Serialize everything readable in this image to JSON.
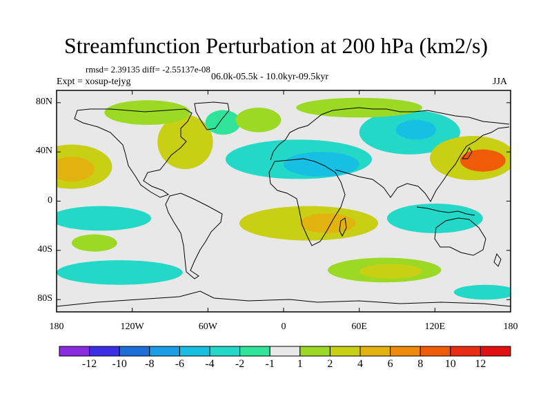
{
  "title": "Streamfunction Perturbation at 200 hPa (km2/s)",
  "stats": "rmsd= 2.39135  diff= -2.55137e-08",
  "experiment": "Expt = xosup-tejyg",
  "period": "06.0k-05.5k - 10.0kyr-09.5kyr",
  "season": "JJA",
  "map": {
    "type": "filled-contour-map",
    "projection": "cylindrical-equidistant",
    "lon_range": [
      -180,
      180
    ],
    "lat_range": [
      -90,
      90
    ],
    "lat_ticks": [
      {
        "value": 80,
        "label": "80N"
      },
      {
        "value": 40,
        "label": "40N"
      },
      {
        "value": 0,
        "label": "0"
      },
      {
        "value": -40,
        "label": "40S"
      },
      {
        "value": -80,
        "label": "80S"
      }
    ],
    "lon_ticks": [
      {
        "value": -180,
        "label": "180"
      },
      {
        "value": -120,
        "label": "120W"
      },
      {
        "value": -60,
        "label": "60W"
      },
      {
        "value": 0,
        "label": "0"
      },
      {
        "value": 60,
        "label": "60E"
      },
      {
        "value": 120,
        "label": "120E"
      },
      {
        "value": 180,
        "label": "180"
      }
    ],
    "background_color": "#e8e8e8",
    "anomaly_regions": [
      {
        "name": "east-pacific-north-high",
        "lon": -168,
        "lat": 28,
        "rlon": 32,
        "rlat": 18,
        "level": "4to6"
      },
      {
        "name": "east-pacific-north-high-core",
        "lon": -168,
        "lat": 26,
        "rlon": 18,
        "rlat": 10,
        "level": "6to8"
      },
      {
        "name": "north-america-high",
        "lon": -78,
        "lat": 48,
        "rlon": 22,
        "rlat": 22,
        "level": "4to6"
      },
      {
        "name": "arctic-high-west",
        "lon": -108,
        "lat": 72,
        "rlon": 34,
        "rlat": 10,
        "level": "2to4"
      },
      {
        "name": "atlantic-low",
        "lon": -48,
        "lat": 64,
        "rlon": 14,
        "rlat": 10,
        "level": "-1to-2"
      },
      {
        "name": "north-atlantic-high",
        "lon": -20,
        "lat": 66,
        "rlon": 18,
        "rlat": 10,
        "level": "2to4"
      },
      {
        "name": "eurasia-low-band",
        "lon": 12,
        "lat": 34,
        "rlon": 58,
        "rlat": 16,
        "level": "-2to-4"
      },
      {
        "name": "eurasia-low-core",
        "lon": 30,
        "lat": 30,
        "rlon": 30,
        "rlat": 10,
        "level": "-4to-6"
      },
      {
        "name": "siberia-low",
        "lon": 100,
        "lat": 56,
        "rlon": 40,
        "rlat": 18,
        "level": "-2to-4"
      },
      {
        "name": "siberia-low-core",
        "lon": 105,
        "lat": 58,
        "rlon": 16,
        "rlat": 8,
        "level": "-4to-6"
      },
      {
        "name": "arctic-high-east",
        "lon": 60,
        "lat": 76,
        "rlon": 50,
        "rlat": 8,
        "level": "2to4"
      },
      {
        "name": "west-pacific-high",
        "lon": 150,
        "lat": 35,
        "rlon": 34,
        "rlat": 18,
        "level": "4to6"
      },
      {
        "name": "west-pacific-high-core",
        "lon": 158,
        "lat": 33,
        "rlon": 18,
        "rlat": 9,
        "level": "8to10"
      },
      {
        "name": "east-pacific-south-low",
        "lon": -145,
        "lat": -14,
        "rlon": 40,
        "rlat": 10,
        "level": "-2to-4"
      },
      {
        "name": "south-atlantic-high",
        "lon": 20,
        "lat": -18,
        "rlon": 55,
        "rlat": 14,
        "level": "4to6"
      },
      {
        "name": "south-atlantic-high-core",
        "lon": 35,
        "lat": -18,
        "rlon": 22,
        "rlat": 8,
        "level": "6to8"
      },
      {
        "name": "indian-ocean-low",
        "lon": 120,
        "lat": -14,
        "rlon": 38,
        "rlat": 12,
        "level": "-2to-4"
      },
      {
        "name": "south-pacific-high",
        "lon": -150,
        "lat": -34,
        "rlon": 18,
        "rlat": 7,
        "level": "2to4"
      },
      {
        "name": "southern-ocean-low-west",
        "lon": -130,
        "lat": -58,
        "rlon": 50,
        "rlat": 10,
        "level": "-2to-4"
      },
      {
        "name": "southern-ocean-high",
        "lon": 80,
        "lat": -56,
        "rlon": 45,
        "rlat": 10,
        "level": "2to4"
      },
      {
        "name": "southern-ocean-high-core",
        "lon": 85,
        "lat": -57,
        "rlon": 25,
        "rlat": 6,
        "level": "4to6"
      },
      {
        "name": "antarctic-low",
        "lon": 160,
        "lat": -74,
        "rlon": 25,
        "rlat": 6,
        "level": "-2to-4"
      }
    ]
  },
  "colorbar": {
    "levels": [
      -12,
      -10,
      -8,
      -6,
      -4,
      -2,
      -1,
      1,
      2,
      4,
      6,
      8,
      10,
      12
    ],
    "labels": [
      "-12",
      "-10",
      "-8",
      "-6",
      "-4",
      "-2",
      "-1",
      "1",
      "2",
      "4",
      "6",
      "8",
      "10",
      "12"
    ],
    "colors": [
      "#8a2be2",
      "#3b2ee6",
      "#1b6fd6",
      "#1a9ee8",
      "#17c0e2",
      "#24d8c8",
      "#2fe39a",
      "#e8e8e8",
      "#9bd925",
      "#c8cf14",
      "#e2b30e",
      "#f08a0a",
      "#f05b08",
      "#e82d12",
      "#e01010"
    ]
  }
}
